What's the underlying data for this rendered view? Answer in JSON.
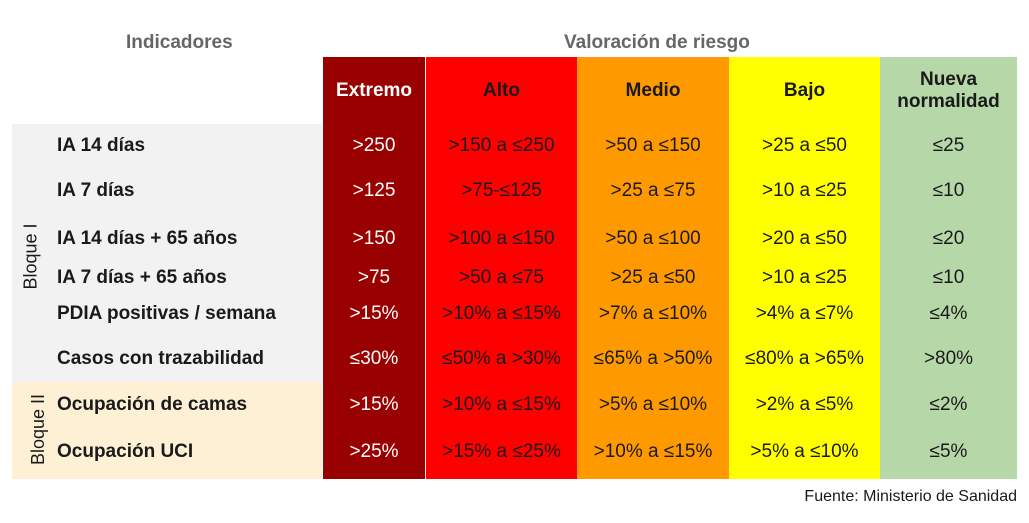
{
  "header": {
    "indicators_title": "Indicadores",
    "risk_title": "Valoración de riesgo"
  },
  "blocks": [
    {
      "label": "Bloque I"
    },
    {
      "label": "Bloque II"
    }
  ],
  "levels": [
    {
      "label": "Extremo",
      "color": "#990000",
      "text_color": "#ffffff"
    },
    {
      "label": "Alto",
      "color": "#ff0000",
      "text_color": "#1a1a1a"
    },
    {
      "label": "Medio",
      "color": "#ff9900",
      "text_color": "#1a1a1a"
    },
    {
      "label": "Bajo",
      "color": "#ffff00",
      "text_color": "#1a1a1a"
    },
    {
      "label": "Nueva normalidad",
      "color": "#b6d7a8",
      "text_color": "#1a1a1a"
    }
  ],
  "rows": [
    {
      "indicator": "IA 14 días",
      "values": [
        ">250",
        ">150 a ≤250",
        ">50 a ≤150",
        ">25 a ≤50",
        "≤25"
      ]
    },
    {
      "indicator": "IA 7 días",
      "values": [
        ">125",
        ">75-≤125",
        ">25 a ≤75",
        ">10 a ≤25",
        "≤10"
      ]
    },
    {
      "indicator": "IA 14 días + 65 años",
      "values": [
        ">150",
        ">100 a ≤150",
        ">50 a ≤100",
        ">20 a ≤50",
        "≤20"
      ]
    },
    {
      "indicator": "IA 7 días + 65 años",
      "values": [
        ">75",
        ">50 a ≤75",
        ">25 a ≤50",
        ">10 a ≤25",
        "≤10"
      ]
    },
    {
      "indicator": "PDIA positivas / semana",
      "values": [
        ">15%",
        ">10% a ≤15%",
        ">7% a ≤10%",
        ">4% a ≤7%",
        "≤4%"
      ]
    },
    {
      "indicator": "Casos con trazabilidad",
      "values": [
        "≤30%",
        "≤50% a >30%",
        "≤65% a >50%",
        "≤80% a >65%",
        ">80%"
      ]
    },
    {
      "indicator": "Ocupación de camas",
      "values": [
        ">15%",
        ">10% a ≤15%",
        ">5% a ≤10%",
        ">2% a ≤5%",
        "≤2%"
      ]
    },
    {
      "indicator": "Ocupación UCI",
      "values": [
        ">25%",
        ">15% a ≤25%",
        ">10% a ≤15%",
        ">5% a ≤10%",
        "≤5%"
      ]
    }
  ],
  "source": "Fuente: Ministerio de Sanidad"
}
